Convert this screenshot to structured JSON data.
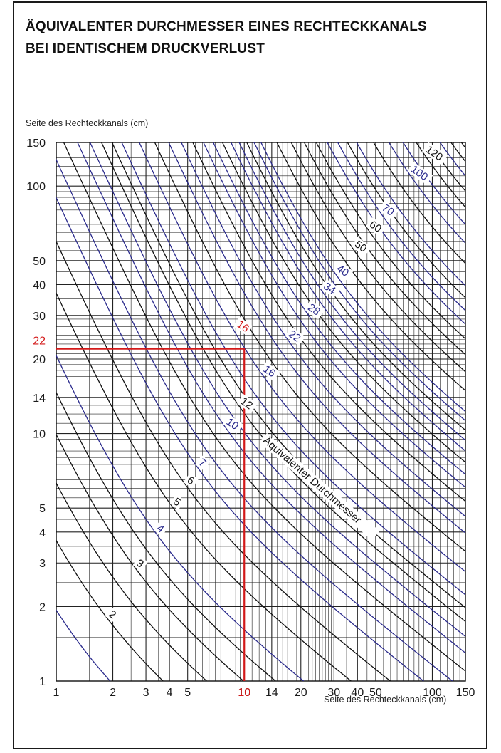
{
  "title_lines": [
    "ÄQUIVALENTER DURCHMESSER EINES RECHTECKKANALS",
    "BEI IDENTISCHEM DRUCKVERLUST"
  ],
  "chart_data": {
    "type": "line",
    "title": "ÄQUIVALENTER DURCHMESSER EINES RECHTECKKANALS BEI IDENTISCHEM DRUCKVERLUST",
    "xlabel": "Seite des Rechteckkanals (cm)",
    "ylabel": "Seite des Rechteckkanals (cm)",
    "xscale": "log",
    "yscale": "log",
    "xlim": [
      1,
      150
    ],
    "ylim": [
      1,
      150
    ],
    "x_ticks": [
      1,
      2,
      3,
      4,
      5,
      10,
      14,
      20,
      30,
      40,
      50,
      100,
      150
    ],
    "y_ticks": [
      1,
      2,
      3,
      4,
      5,
      10,
      14,
      20,
      30,
      40,
      50,
      100,
      150
    ],
    "grid": true,
    "curve_label": "Äquivalenter Durchmesser",
    "labelled_curves": [
      {
        "d": 2,
        "color": "#111111"
      },
      {
        "d": 3,
        "color": "#111111"
      },
      {
        "d": 4,
        "color": "#2a2a8c"
      },
      {
        "d": 5,
        "color": "#111111"
      },
      {
        "d": 6,
        "color": "#111111"
      },
      {
        "d": 7,
        "color": "#2a2a8c"
      },
      {
        "d": 10,
        "color": "#2a2a8c"
      },
      {
        "d": 12,
        "color": "#111111"
      },
      {
        "d": 16,
        "color": "#2a2a8c"
      },
      {
        "d": 22,
        "color": "#2a2a8c"
      },
      {
        "d": 28,
        "color": "#2a2a8c"
      },
      {
        "d": 34,
        "color": "#2a2a8c"
      },
      {
        "d": 40,
        "color": "#2a2a8c"
      },
      {
        "d": 50,
        "color": "#111111"
      },
      {
        "d": 60,
        "color": "#111111"
      },
      {
        "d": 70,
        "color": "#2a2a8c"
      },
      {
        "d": 100,
        "color": "#2a2a8c"
      },
      {
        "d": 120,
        "color": "#111111"
      }
    ],
    "example": {
      "x": 10,
      "y": 22,
      "d": 16,
      "x_label": "10",
      "y_label": "22",
      "d_label": "16",
      "color": "#d31919"
    }
  }
}
